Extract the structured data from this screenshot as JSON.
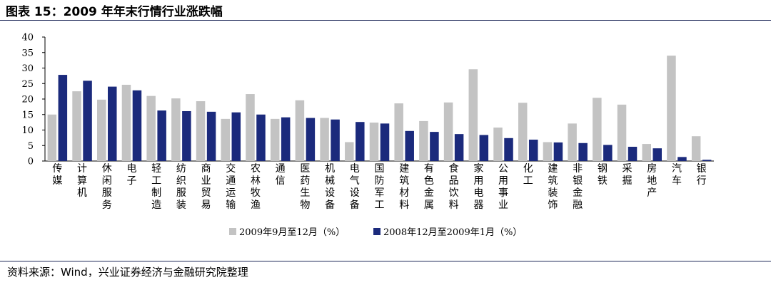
{
  "header": {
    "title": "图表 15：2009 年年末行情行业涨跌幅"
  },
  "footer": {
    "source": "资料来源：Wind，兴业证券经济与金融研究院整理"
  },
  "colors": {
    "series1": "#c3c3c3",
    "series2": "#1b2a7c",
    "rule": "#1f2a5a"
  },
  "chart_data": {
    "type": "bar",
    "title": "",
    "xlabel": "",
    "ylabel": "",
    "ylim": [
      0,
      40
    ],
    "yticks": [
      0,
      5,
      10,
      15,
      20,
      25,
      30,
      35,
      40
    ],
    "grid": false,
    "legend_position": "bottom",
    "categories": [
      "传媒",
      "计算机",
      "休闲服务",
      "电子",
      "轻工制造",
      "纺织服装",
      "商业贸易",
      "交通运输",
      "农林牧渔",
      "通信",
      "医药生物",
      "机械设备",
      "电气设备",
      "国防军工",
      "建筑材料",
      "有色金属",
      "食品饮料",
      "家用电器",
      "公用事业",
      "化工",
      "建筑装饰",
      "非银金融",
      "钢铁",
      "采掘",
      "房地产",
      "汽车",
      "银行"
    ],
    "series": [
      {
        "name": "2009年9月至12月（%）",
        "values": [
          15.0,
          22.5,
          19.8,
          24.6,
          21.0,
          20.2,
          19.3,
          13.6,
          21.6,
          13.6,
          19.6,
          13.9,
          6.1,
          12.4,
          18.6,
          12.9,
          18.9,
          29.6,
          10.8,
          18.8,
          6.1,
          12.1,
          20.4,
          18.2,
          5.5,
          34.0,
          8.0
        ]
      },
      {
        "name": "2008年12月至2009年1月（%）",
        "values": [
          27.8,
          25.9,
          24.0,
          22.8,
          16.3,
          16.1,
          15.9,
          15.7,
          15.0,
          14.1,
          13.9,
          13.4,
          12.6,
          12.1,
          9.7,
          9.4,
          8.7,
          8.4,
          7.4,
          6.9,
          6.0,
          5.8,
          5.2,
          4.6,
          4.1,
          1.3,
          0.4
        ]
      }
    ]
  }
}
